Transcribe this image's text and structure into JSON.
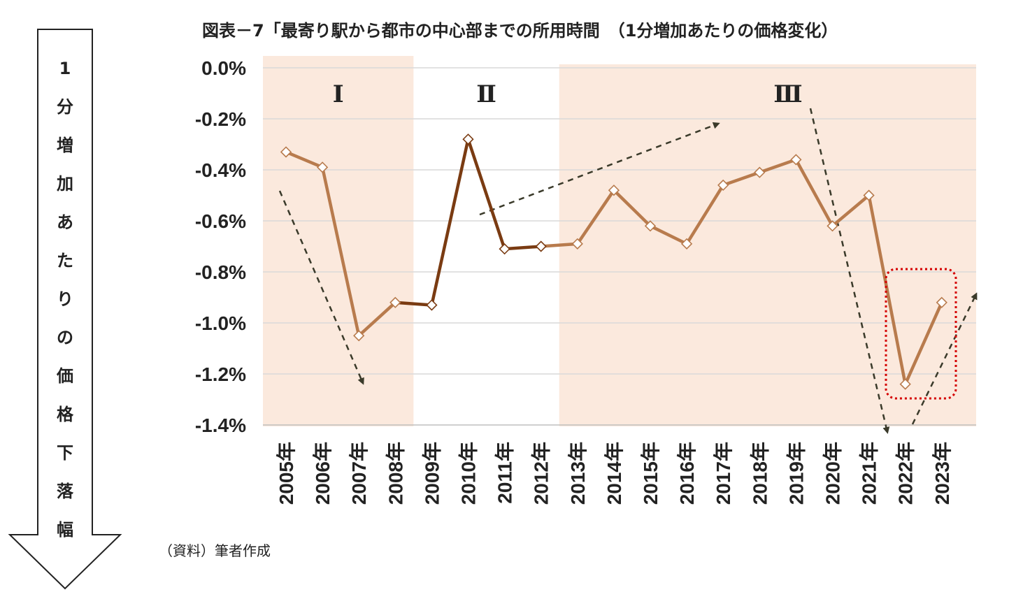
{
  "chart_data": {
    "type": "line",
    "title": "図表－7「最寄り駅から都市の中心部までの所用時間　（1分増加あたりの価格変化）",
    "ylabel": "1分増加あたりの価格下落幅",
    "source": "（資料）筆者作成",
    "categories": [
      "2005年",
      "2006年",
      "2007年",
      "2008年",
      "2009年",
      "2010年",
      "2011年",
      "2012年",
      "2013年",
      "2014年",
      "2015年",
      "2016年",
      "2017年",
      "2018年",
      "2019年",
      "2020年",
      "2021年",
      "2022年",
      "2023年"
    ],
    "values": [
      -0.33,
      -0.39,
      -1.05,
      -0.92,
      -0.93,
      -0.28,
      -0.71,
      -0.7,
      -0.69,
      -0.48,
      -0.62,
      -0.69,
      -0.46,
      -0.41,
      -0.36,
      -0.62,
      -0.5,
      -1.24,
      -0.92
    ],
    "ylim": [
      -1.4,
      0.0
    ],
    "yticks": [
      "0.0%",
      "-0.2%",
      "-0.4%",
      "-0.6%",
      "-0.8%",
      "-1.0%",
      "-1.2%",
      "-1.4%"
    ],
    "ytick_values": [
      0.0,
      -0.2,
      -0.4,
      -0.6,
      -0.8,
      -1.0,
      -1.2,
      -1.4
    ],
    "grid": true,
    "periods": [
      {
        "label": "Ⅰ",
        "from": "2005年",
        "to": "2008年"
      },
      {
        "label": "Ⅱ",
        "from": "2009年",
        "to": "2012年"
      },
      {
        "label": "Ⅲ",
        "from": "2013年",
        "to": "2023年"
      }
    ],
    "colors": {
      "period_shade": "#fbe9dd",
      "line_light": "#b87b4d",
      "line_dark": "#7a3b12",
      "marker_fill": "#ffffff",
      "grid": "#d9d9d9",
      "trend_arrow": "#3a3a2a",
      "highlight_box": "#d40000"
    }
  }
}
